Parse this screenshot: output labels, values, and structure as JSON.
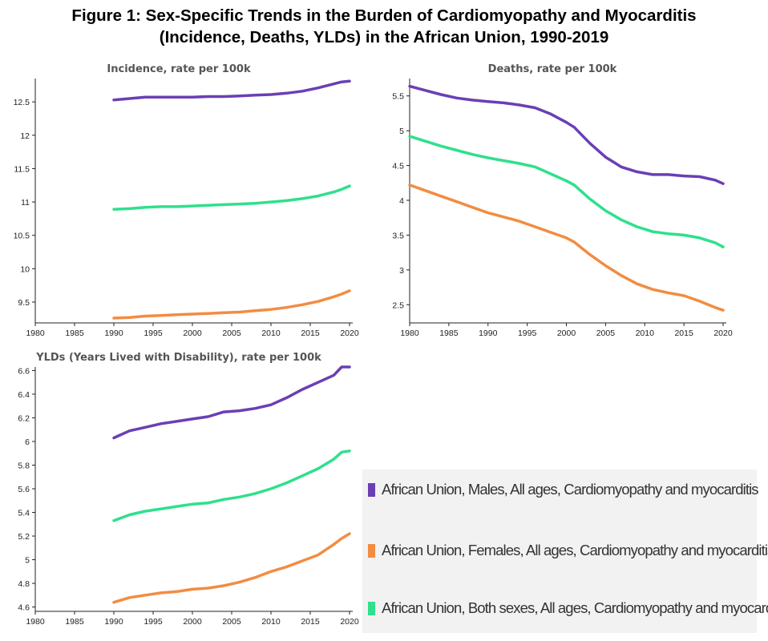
{
  "figure": {
    "title_line1": "Figure 1: Sex-Specific Trends in the Burden of Cardiomyopathy and Myocarditis",
    "title_line2": "(Incidence, Deaths, YLDs) in the African Union, 1990-2019"
  },
  "colors": {
    "males": "#6a3fb5",
    "females": "#f28c42",
    "both": "#2fe08c"
  },
  "legend": [
    {
      "key": "males",
      "label": "African Union, Males, All ages, Cardiomyopathy and myocarditis"
    },
    {
      "key": "females",
      "label": "African Union, Females, All ages, Cardiomyopathy and myocarditis"
    },
    {
      "key": "both",
      "label": "African Union, Both sexes, All ages, Cardiomyopathy and myocarditis"
    }
  ],
  "chart_data": [
    {
      "id": "incidence",
      "type": "line",
      "title": "Incidence, rate per 100k",
      "xlim": [
        1980,
        2020
      ],
      "xticks": [
        1980,
        1985,
        1990,
        1995,
        2000,
        2005,
        2010,
        2015,
        2020
      ],
      "ylim": [
        9.2,
        12.85
      ],
      "yticks": [
        12.5,
        12,
        11.5,
        11,
        10.5,
        10,
        9.5
      ],
      "x": [
        1990,
        1992,
        1994,
        1996,
        1998,
        2000,
        2002,
        2004,
        2006,
        2008,
        2010,
        2012,
        2014,
        2016,
        2018,
        2019,
        2020
      ],
      "series": [
        {
          "name": "males",
          "values": [
            12.53,
            12.55,
            12.57,
            12.57,
            12.57,
            12.57,
            12.58,
            12.58,
            12.59,
            12.6,
            12.61,
            12.63,
            12.66,
            12.71,
            12.77,
            12.8,
            12.81
          ]
        },
        {
          "name": "both",
          "values": [
            10.89,
            10.9,
            10.92,
            10.93,
            10.93,
            10.94,
            10.95,
            10.96,
            10.97,
            10.98,
            11.0,
            11.02,
            11.05,
            11.09,
            11.15,
            11.19,
            11.24
          ]
        },
        {
          "name": "females",
          "values": [
            9.26,
            9.27,
            9.29,
            9.3,
            9.31,
            9.32,
            9.33,
            9.34,
            9.35,
            9.37,
            9.39,
            9.42,
            9.46,
            9.51,
            9.58,
            9.62,
            9.67
          ]
        }
      ]
    },
    {
      "id": "deaths",
      "type": "line",
      "title": "Deaths, rate per 100k",
      "xlim": [
        1980,
        2020
      ],
      "xticks": [
        1980,
        1985,
        1990,
        1995,
        2000,
        2005,
        2010,
        2015,
        2020
      ],
      "ylim": [
        2.25,
        5.75
      ],
      "yticks": [
        5.5,
        5,
        4.5,
        4,
        3.5,
        3,
        2.5
      ],
      "x": [
        1980,
        1982,
        1984,
        1986,
        1988,
        1990,
        1992,
        1994,
        1996,
        1998,
        2000,
        2001,
        2003,
        2005,
        2007,
        2009,
        2011,
        2013,
        2015,
        2017,
        2019,
        2020
      ],
      "series": [
        {
          "name": "males",
          "values": [
            5.64,
            5.58,
            5.52,
            5.47,
            5.44,
            5.42,
            5.4,
            5.37,
            5.33,
            5.24,
            5.12,
            5.05,
            4.82,
            4.62,
            4.48,
            4.41,
            4.37,
            4.37,
            4.35,
            4.34,
            4.29,
            4.24
          ]
        },
        {
          "name": "both",
          "values": [
            4.92,
            4.85,
            4.78,
            4.72,
            4.66,
            4.61,
            4.57,
            4.53,
            4.48,
            4.38,
            4.28,
            4.22,
            4.02,
            3.85,
            3.72,
            3.62,
            3.55,
            3.52,
            3.5,
            3.46,
            3.39,
            3.33
          ]
        },
        {
          "name": "females",
          "values": [
            4.22,
            4.14,
            4.06,
            3.98,
            3.9,
            3.82,
            3.76,
            3.7,
            3.62,
            3.54,
            3.46,
            3.4,
            3.22,
            3.06,
            2.92,
            2.8,
            2.72,
            2.67,
            2.63,
            2.55,
            2.46,
            2.42
          ]
        }
      ]
    },
    {
      "id": "ylds",
      "type": "line",
      "title": "YLDs (Years Lived with Disability), rate per 100k",
      "xlim": [
        1980,
        2020
      ],
      "xticks": [
        1980,
        1985,
        1990,
        1995,
        2000,
        2005,
        2010,
        2015,
        2020
      ],
      "ylim": [
        4.57,
        6.63
      ],
      "yticks": [
        6.6,
        6.4,
        6.2,
        6,
        5.8,
        5.6,
        5.4,
        5.2,
        5,
        4.8,
        4.6
      ],
      "x": [
        1990,
        1992,
        1994,
        1996,
        1998,
        2000,
        2002,
        2004,
        2006,
        2008,
        2010,
        2012,
        2014,
        2016,
        2018,
        2019,
        2020
      ],
      "series": [
        {
          "name": "males",
          "values": [
            6.03,
            6.09,
            6.12,
            6.15,
            6.17,
            6.19,
            6.21,
            6.25,
            6.26,
            6.28,
            6.31,
            6.37,
            6.44,
            6.5,
            6.56,
            6.63,
            6.63
          ]
        },
        {
          "name": "both",
          "values": [
            5.33,
            5.38,
            5.41,
            5.43,
            5.45,
            5.47,
            5.48,
            5.51,
            5.53,
            5.56,
            5.6,
            5.65,
            5.71,
            5.77,
            5.85,
            5.91,
            5.92
          ]
        },
        {
          "name": "females",
          "values": [
            4.64,
            4.68,
            4.7,
            4.72,
            4.73,
            4.75,
            4.76,
            4.78,
            4.81,
            4.85,
            4.9,
            4.94,
            4.99,
            5.04,
            5.13,
            5.18,
            5.22
          ]
        }
      ]
    }
  ]
}
